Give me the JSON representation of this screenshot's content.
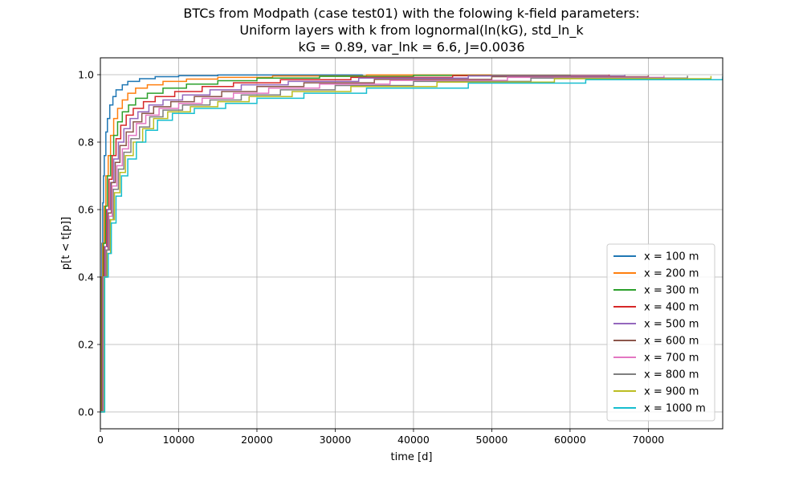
{
  "chart_data": {
    "type": "line",
    "title_lines": [
      "BTCs from Modpath (case test01) with the folowing k-field parameters:",
      "Uniform layers with k from lognormal(ln(kG), std_ln_k",
      "kG = 0.89, var_lnk = 6.6, J=0.0036"
    ],
    "xlabel": "time [d]",
    "ylabel": "p[t < t[p]]",
    "xlim": [
      0,
      79500
    ],
    "ylim": [
      -0.05,
      1.05
    ],
    "xticks": [
      0,
      10000,
      20000,
      30000,
      40000,
      50000,
      60000,
      70000
    ],
    "xtick_labels": [
      "0",
      "10000",
      "20000",
      "30000",
      "40000",
      "50000",
      "60000",
      "70000"
    ],
    "yticks": [
      0.0,
      0.2,
      0.4,
      0.6,
      0.8,
      1.0
    ],
    "ytick_labels": [
      "0.0",
      "0.2",
      "0.4",
      "0.6",
      "0.8",
      "1.0"
    ],
    "grid": true,
    "legend_position": "lower-right",
    "series": [
      {
        "name": "x = 100 m",
        "color": "#1f77b4",
        "x": [
          0,
          100,
          200,
          300,
          400,
          500,
          700,
          900,
          1200,
          1600,
          2000,
          2800,
          3500,
          5000,
          7000,
          10000,
          15000,
          33500
        ],
        "y": [
          0.0,
          0.4,
          0.5,
          0.62,
          0.7,
          0.76,
          0.83,
          0.87,
          0.91,
          0.935,
          0.955,
          0.97,
          0.98,
          0.988,
          0.994,
          0.997,
          0.999,
          1.0
        ]
      },
      {
        "name": "x = 200 m",
        "color": "#ff7f0e",
        "x": [
          0,
          150,
          300,
          500,
          700,
          1000,
          1300,
          1700,
          2200,
          2800,
          3500,
          4500,
          6000,
          8000,
          11000,
          15000,
          22000,
          34000,
          50000
        ],
        "y": [
          0.0,
          0.4,
          0.5,
          0.61,
          0.7,
          0.76,
          0.82,
          0.87,
          0.9,
          0.925,
          0.945,
          0.96,
          0.97,
          0.98,
          0.987,
          0.992,
          0.996,
          0.999,
          1.0
        ]
      },
      {
        "name": "x = 300 m",
        "color": "#2ca02c",
        "x": [
          0,
          200,
          400,
          650,
          900,
          1300,
          1700,
          2200,
          2800,
          3600,
          4500,
          6000,
          8000,
          11000,
          15000,
          20000,
          28000,
          40000,
          60000
        ],
        "y": [
          0.0,
          0.4,
          0.5,
          0.61,
          0.7,
          0.76,
          0.82,
          0.86,
          0.89,
          0.91,
          0.93,
          0.945,
          0.96,
          0.972,
          0.982,
          0.99,
          0.995,
          0.998,
          1.0
        ]
      },
      {
        "name": "x = 400 m",
        "color": "#d62728",
        "x": [
          0,
          250,
          500,
          800,
          1100,
          1500,
          2000,
          2600,
          3300,
          4200,
          5500,
          7000,
          9500,
          13000,
          17000,
          23000,
          32000,
          45000,
          65000
        ],
        "y": [
          0.0,
          0.4,
          0.49,
          0.6,
          0.69,
          0.76,
          0.81,
          0.85,
          0.88,
          0.9,
          0.92,
          0.935,
          0.95,
          0.965,
          0.976,
          0.985,
          0.992,
          0.997,
          1.0
        ]
      },
      {
        "name": "x = 500 m",
        "color": "#9467bd",
        "x": [
          0,
          300,
          600,
          900,
          1300,
          1700,
          2300,
          3000,
          3800,
          4800,
          6200,
          8000,
          10500,
          14000,
          18000,
          24000,
          33000,
          47000,
          67000
        ],
        "y": [
          0.0,
          0.4,
          0.49,
          0.6,
          0.68,
          0.75,
          0.8,
          0.84,
          0.87,
          0.89,
          0.91,
          0.925,
          0.94,
          0.955,
          0.97,
          0.98,
          0.99,
          0.996,
          0.999
        ]
      },
      {
        "name": "x = 600 m",
        "color": "#8c564b",
        "x": [
          0,
          350,
          700,
          1000,
          1400,
          1900,
          2500,
          3300,
          4200,
          5300,
          6800,
          9000,
          12000,
          15500,
          20000,
          26000,
          35000,
          50000,
          70000
        ],
        "y": [
          0.0,
          0.4,
          0.48,
          0.59,
          0.68,
          0.74,
          0.79,
          0.83,
          0.86,
          0.885,
          0.905,
          0.92,
          0.935,
          0.95,
          0.965,
          0.976,
          0.986,
          0.994,
          0.998
        ]
      },
      {
        "name": "x = 700 m",
        "color": "#e377c2",
        "x": [
          0,
          400,
          750,
          1100,
          1500,
          2100,
          2800,
          3600,
          4600,
          5800,
          7500,
          10000,
          13000,
          17000,
          21500,
          28000,
          37000,
          52000,
          72000
        ],
        "y": [
          0.0,
          0.4,
          0.48,
          0.58,
          0.67,
          0.73,
          0.78,
          0.82,
          0.855,
          0.88,
          0.9,
          0.915,
          0.93,
          0.945,
          0.96,
          0.972,
          0.983,
          0.992,
          0.997
        ]
      },
      {
        "name": "x = 800 m",
        "color": "#7f7f7f",
        "x": [
          0,
          450,
          800,
          1200,
          1650,
          2300,
          3000,
          3900,
          5000,
          6300,
          8000,
          10500,
          14000,
          18000,
          23000,
          30000,
          40000,
          55000,
          75000
        ],
        "y": [
          0.0,
          0.4,
          0.48,
          0.57,
          0.66,
          0.72,
          0.77,
          0.81,
          0.845,
          0.875,
          0.895,
          0.91,
          0.925,
          0.94,
          0.955,
          0.968,
          0.98,
          0.99,
          0.997
        ]
      },
      {
        "name": "x = 900 m",
        "color": "#bcbd22",
        "x": [
          0,
          500,
          900,
          1300,
          1800,
          2500,
          3200,
          4200,
          5400,
          6800,
          8600,
          11500,
          15000,
          19000,
          24500,
          32000,
          43000,
          58000,
          78000
        ],
        "y": [
          0.0,
          0.4,
          0.47,
          0.57,
          0.65,
          0.71,
          0.76,
          0.8,
          0.84,
          0.87,
          0.89,
          0.905,
          0.92,
          0.935,
          0.95,
          0.965,
          0.978,
          0.988,
          0.996
        ]
      },
      {
        "name": "x = 1000 m",
        "color": "#17becf",
        "x": [
          0,
          550,
          1000,
          1400,
          2000,
          2700,
          3500,
          4600,
          5800,
          7300,
          9200,
          12000,
          16000,
          20000,
          26000,
          34000,
          47000,
          62000,
          79500
        ],
        "y": [
          0.0,
          0.4,
          0.47,
          0.56,
          0.64,
          0.7,
          0.75,
          0.8,
          0.835,
          0.865,
          0.885,
          0.9,
          0.915,
          0.93,
          0.945,
          0.96,
          0.975,
          0.985,
          0.995
        ]
      }
    ]
  }
}
